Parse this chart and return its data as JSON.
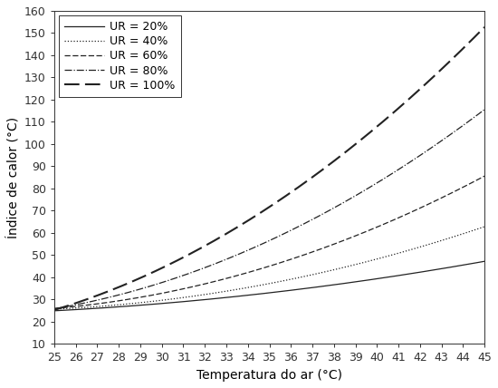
{
  "title": "",
  "xlabel": "Temperatura do ar (°C)",
  "ylabel": "Índice de calor (°C)",
  "xlim": [
    25,
    45
  ],
  "ylim": [
    10,
    160
  ],
  "xticks": [
    25,
    26,
    27,
    28,
    29,
    30,
    31,
    32,
    33,
    34,
    35,
    36,
    37,
    38,
    39,
    40,
    41,
    42,
    43,
    44,
    45
  ],
  "yticks": [
    10,
    20,
    30,
    40,
    50,
    60,
    70,
    80,
    90,
    100,
    110,
    120,
    130,
    140,
    150,
    160
  ],
  "humidity_levels": [
    20,
    40,
    60,
    80,
    100
  ],
  "legend_labels": [
    "UR = 20%",
    "UR = 40%",
    "UR = 60%",
    "UR = 80%",
    "UR = 100%"
  ],
  "line_color": "#222222",
  "background_color": "#ffffff",
  "font_size": 10,
  "tick_fontsize": 9,
  "legend_fontsize": 9
}
